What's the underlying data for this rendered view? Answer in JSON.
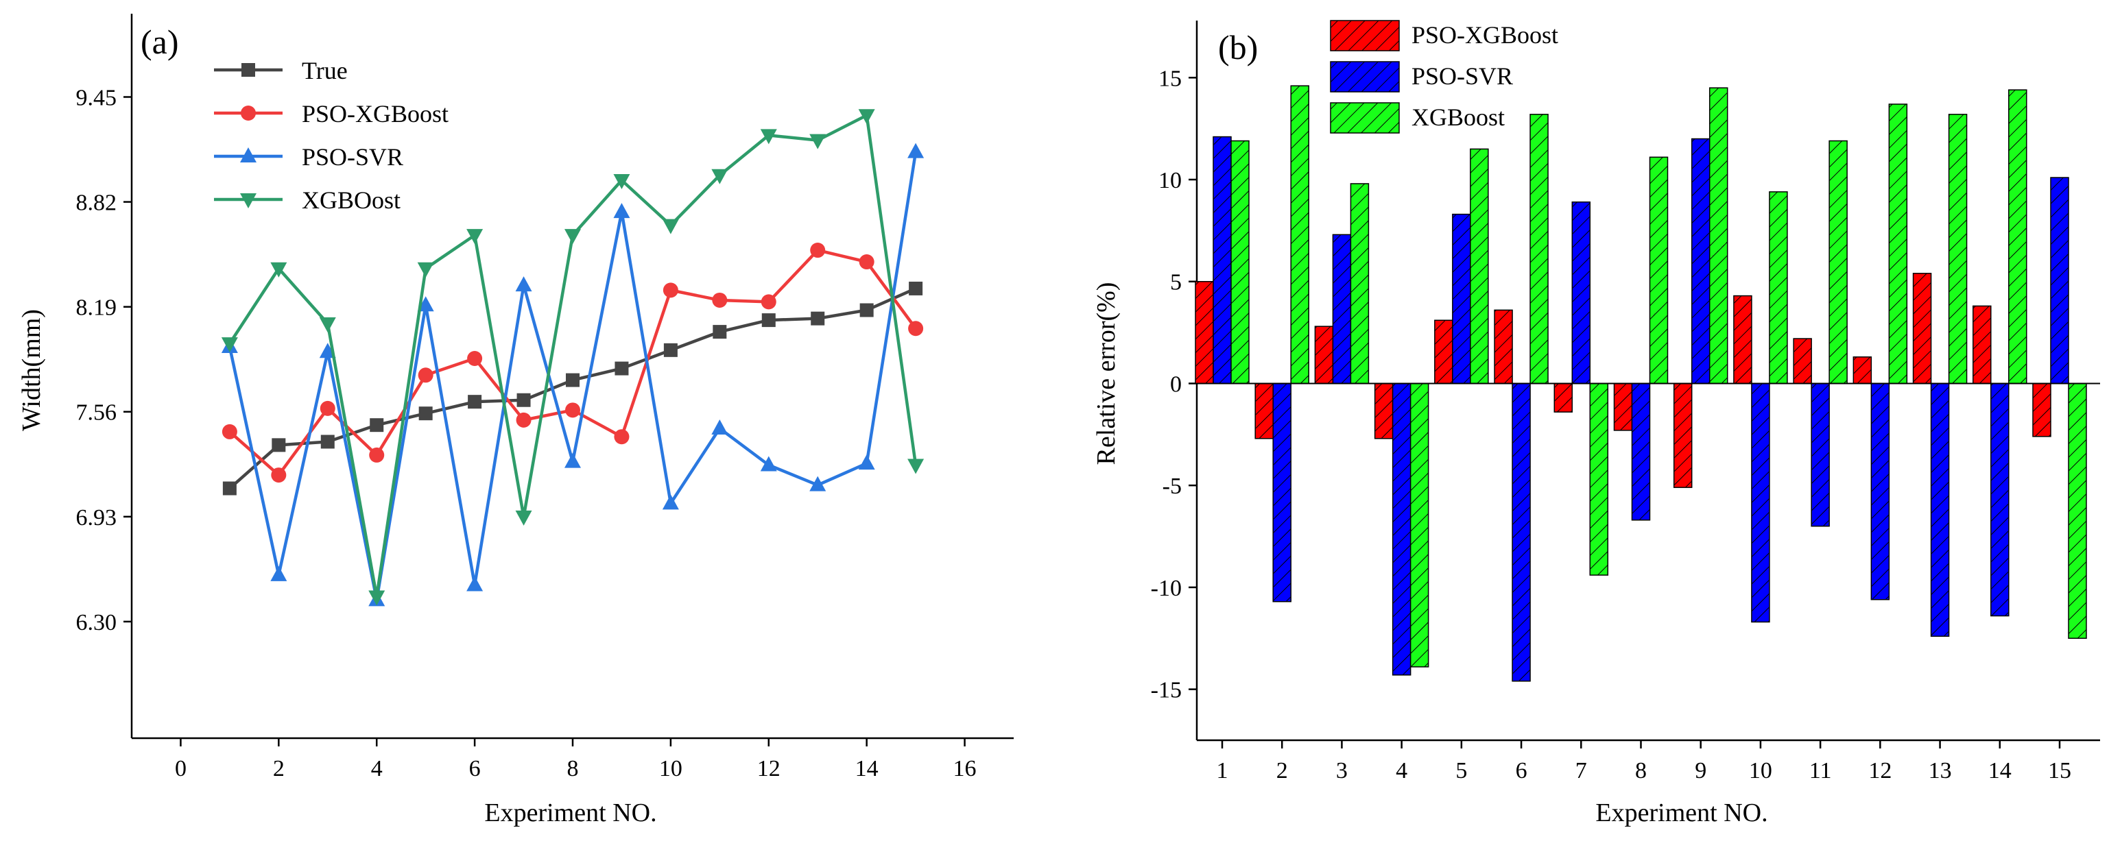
{
  "chart_data": [
    {
      "type": "line",
      "panel_label": "(a)",
      "xlabel": "Experiment NO.",
      "ylabel": "Width(mm)",
      "xlim": [
        -1,
        17
      ],
      "ylim": [
        5.6,
        9.95
      ],
      "x_ticks": [
        0,
        2,
        4,
        6,
        8,
        10,
        12,
        14,
        16
      ],
      "y_ticks": [
        6.3,
        6.93,
        7.56,
        8.19,
        8.82,
        9.45
      ],
      "y_tick_labels": [
        "6.30",
        "6.93",
        "7.56",
        "8.19",
        "8.82",
        "9.45"
      ],
      "x_tick_labels": [
        "0",
        "2",
        "4",
        "6",
        "8",
        "10",
        "12",
        "14",
        "16"
      ],
      "x": [
        1,
        2,
        3,
        4,
        5,
        6,
        7,
        8,
        9,
        10,
        11,
        12,
        13,
        14,
        15
      ],
      "legend_position": "top-left",
      "series": [
        {
          "name": "True",
          "color": "#454545",
          "marker": "square",
          "values": [
            7.1,
            7.36,
            7.38,
            7.48,
            7.55,
            7.62,
            7.63,
            7.75,
            7.82,
            7.93,
            8.04,
            8.11,
            8.12,
            8.17,
            8.3
          ]
        },
        {
          "name": "PSO-XGBoost",
          "color": "#ef3b3b",
          "marker": "circle",
          "values": [
            7.44,
            7.18,
            7.58,
            7.3,
            7.78,
            7.88,
            7.51,
            7.57,
            7.41,
            8.29,
            8.23,
            8.22,
            8.53,
            8.46,
            8.06
          ]
        },
        {
          "name": "PSO-SVR",
          "color": "#2a78e0",
          "marker": "triangle-up",
          "values": [
            7.95,
            6.58,
            7.92,
            6.43,
            8.2,
            6.52,
            8.32,
            7.26,
            8.76,
            7.01,
            7.46,
            7.24,
            7.12,
            7.25,
            9.12
          ]
        },
        {
          "name": "XGBOost",
          "color": "#2e9c6a",
          "marker": "triangle-down",
          "values": [
            7.97,
            8.42,
            8.09,
            6.45,
            8.42,
            8.62,
            6.93,
            8.62,
            8.95,
            8.68,
            8.98,
            9.22,
            9.19,
            9.34,
            7.24
          ]
        }
      ]
    },
    {
      "type": "bar",
      "panel_label": "(b)",
      "xlabel": "Experiment NO.",
      "ylabel": "Relative error(%)",
      "ylim": [
        -17.5,
        17.8
      ],
      "y_ticks": [
        -15,
        -10,
        -5,
        0,
        5,
        10,
        15
      ],
      "y_tick_labels": [
        "-15",
        "-10",
        "-5",
        "0",
        "5",
        "10",
        "15"
      ],
      "categories": [
        "1",
        "2",
        "3",
        "4",
        "5",
        "6",
        "7",
        "8",
        "9",
        "10",
        "11",
        "12",
        "13",
        "14",
        "15"
      ],
      "legend_position": "top-left",
      "series": [
        {
          "name": "PSO-XGBoost",
          "color": "#ff0000",
          "values": [
            5.0,
            -2.7,
            2.8,
            -2.7,
            3.1,
            3.6,
            -1.4,
            -2.3,
            -5.1,
            4.3,
            2.2,
            1.3,
            5.4,
            3.8,
            -2.6
          ]
        },
        {
          "name": "PSO-SVR",
          "color": "#0000ff",
          "values": [
            12.1,
            -10.7,
            7.3,
            -14.3,
            8.3,
            -14.6,
            8.9,
            -6.7,
            12.0,
            -11.7,
            -7.0,
            -10.6,
            -12.4,
            -11.4,
            10.1
          ]
        },
        {
          "name": "XGBoost",
          "color": "#19ff19",
          "values": [
            11.9,
            14.6,
            9.8,
            -13.9,
            11.5,
            13.2,
            -9.4,
            11.1,
            14.5,
            9.4,
            11.9,
            13.7,
            13.2,
            14.4,
            -12.5
          ]
        }
      ]
    }
  ]
}
